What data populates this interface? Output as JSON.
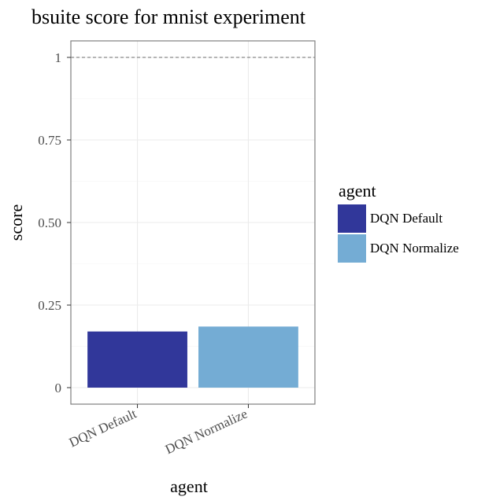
{
  "chart_data": {
    "type": "bar",
    "title": "bsuite score for mnist experiment",
    "xlabel": "agent",
    "ylabel": "score",
    "categories": [
      "DQN Default",
      "DQN Normalize"
    ],
    "values": [
      0.17,
      0.185
    ],
    "colors": [
      "#31379a",
      "#74acd4"
    ],
    "ylim": [
      -0.05,
      1.05
    ],
    "yticks": [
      0,
      0.25,
      0.5,
      0.75,
      1
    ],
    "ytick_labels": [
      "0",
      "0.25",
      "0.50",
      "0.75",
      "1"
    ],
    "reference_line": 1,
    "grid": true,
    "legend": {
      "title": "agent",
      "position": "right",
      "entries": [
        "DQN Default",
        "DQN Normalize"
      ]
    }
  }
}
